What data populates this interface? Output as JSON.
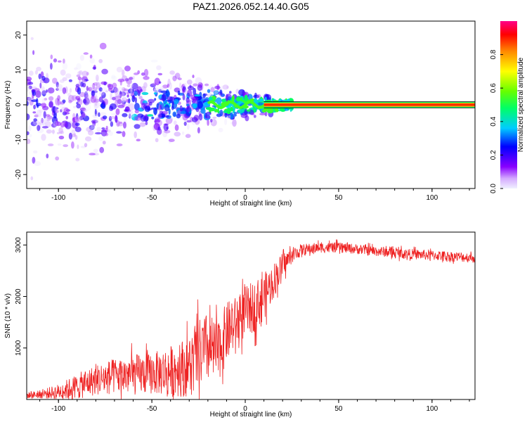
{
  "title": "PAZ1.2026.052.14.40.G05",
  "chart_data": [
    {
      "type": "heatmap",
      "name": "spectrogram",
      "xlabel": "Height of straight line (km)",
      "ylabel": "Frequency (Hz)",
      "xlim": [
        -117,
        123
      ],
      "ylim": [
        -24,
        24
      ],
      "xticks": [
        -100,
        -50,
        0,
        50,
        100
      ],
      "yticks": [
        -20,
        -10,
        0,
        10,
        20
      ],
      "colorbar": {
        "label": "Normalized spectral amplitude",
        "range": [
          0,
          1
        ],
        "ticks": [
          0.0,
          0.2,
          0.4,
          0.6,
          0.8
        ],
        "tick_labels": [
          "0.0",
          "0.2",
          "0.4",
          "0.6",
          "0.8"
        ]
      },
      "features": [
        {
          "description": "strong carrier line at 0 Hz",
          "x": [
            10,
            123
          ],
          "freq": 0,
          "amplitude": 1.0
        },
        {
          "description": "tracked carrier segment",
          "x": [
            -20,
            10
          ],
          "freq": 0,
          "amplitude": 0.55
        },
        {
          "description": "diffuse multipath spread",
          "x": [
            -117,
            -20
          ],
          "freq_spread": [
            -24,
            24
          ],
          "amplitude": 0.1
        }
      ]
    },
    {
      "type": "line",
      "name": "snr",
      "xlabel": "Height of straight line (km)",
      "ylabel": "SNR (10 * v/v)",
      "xlim": [
        -117,
        123
      ],
      "ylim": [
        0,
        3250
      ],
      "xticks": [
        -100,
        -50,
        0,
        50,
        100
      ],
      "yticks": [
        1000,
        2000,
        3000
      ],
      "series": [
        {
          "name": "SNR",
          "color": "#ee2222",
          "x": [
            -117,
            -110,
            -100,
            -90,
            -80,
            -70,
            -60,
            -50,
            -40,
            -30,
            -25,
            -20,
            -15,
            -10,
            -5,
            0,
            5,
            10,
            15,
            20,
            25,
            30,
            40,
            50,
            60,
            70,
            80,
            90,
            100,
            110,
            123
          ],
          "y": [
            80,
            100,
            150,
            250,
            380,
            450,
            480,
            500,
            550,
            650,
            850,
            1000,
            900,
            1300,
            1500,
            1700,
            1800,
            2000,
            2300,
            2600,
            2800,
            2900,
            2950,
            2950,
            2920,
            2880,
            2850,
            2820,
            2800,
            2780,
            2750
          ],
          "noise_amplitude": [
            60,
            80,
            150,
            250,
            300,
            350,
            400,
            400,
            500,
            600,
            700,
            700,
            600,
            600,
            500,
            500,
            500,
            450,
            350,
            250,
            150,
            120,
            100,
            100,
            100,
            100,
            100,
            100,
            100,
            100,
            100
          ]
        }
      ]
    }
  ]
}
